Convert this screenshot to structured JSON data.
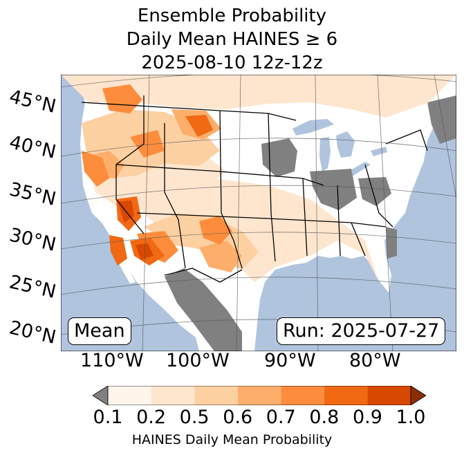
{
  "title": {
    "line1": "Ensemble Probability",
    "line2": "Daily Mean HAINES ≥ 6",
    "line3": "2025-08-10 12z-12z"
  },
  "map": {
    "ocean_color": "#b0c4de",
    "land_color": "#ffffff",
    "missing_color": "#808080",
    "lat_labels": [
      "45°N",
      "40°N",
      "35°N",
      "30°N",
      "25°N",
      "20°N"
    ],
    "lon_labels": [
      "110°W",
      "100°W",
      "90°W",
      "80°W"
    ],
    "stat_label": "Mean",
    "run_label": "Run: 2025-07-27"
  },
  "colorbar": {
    "ticks": [
      "0.1",
      "0.2",
      "0.5",
      "0.6",
      "0.7",
      "0.8",
      "0.9",
      "1.0"
    ],
    "colors": [
      "#fff5eb",
      "#fee6ce",
      "#fdd0a2",
      "#fdae6b",
      "#fd8d3c",
      "#f16913",
      "#d94801"
    ],
    "under_color": "#808080",
    "over_color": "#8c2d04",
    "label": "HAINES Daily Mean Probability"
  }
}
